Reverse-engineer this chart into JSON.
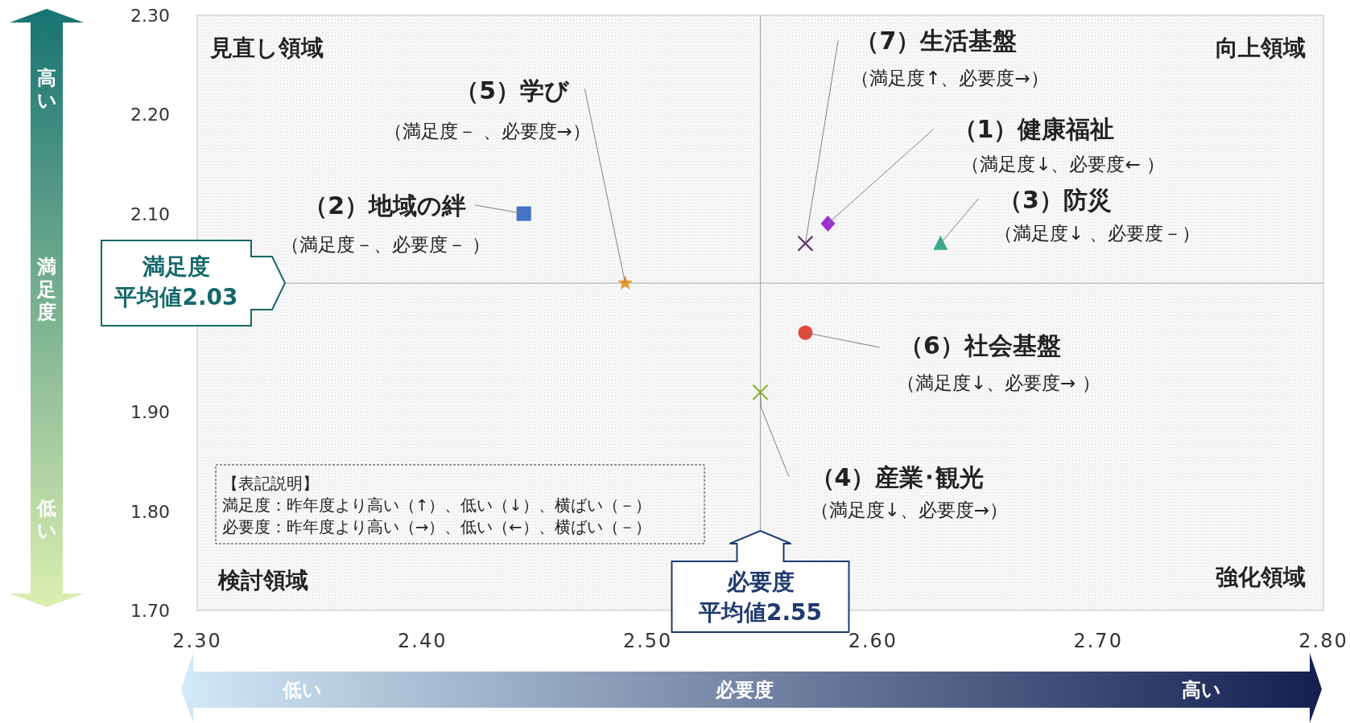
{
  "chart_data": {
    "type": "scatter",
    "xlabel": "必要度",
    "ylabel": "満足度",
    "xlim": [
      2.3,
      2.8
    ],
    "ylim": [
      1.7,
      2.3
    ],
    "xticks": [
      {
        "value": 2.3,
        "label": "2.30"
      },
      {
        "value": 2.4,
        "label": "2.40"
      },
      {
        "value": 2.5,
        "label": "2.50"
      },
      {
        "value": 2.6,
        "label": "2.60"
      },
      {
        "value": 2.7,
        "label": "2.70"
      },
      {
        "value": 2.8,
        "label": "2.80"
      }
    ],
    "yticks": [
      {
        "value": 1.7,
        "label": "1.70"
      },
      {
        "value": 1.8,
        "label": "1.80"
      },
      {
        "value": 1.9,
        "label": "1.90"
      },
      {
        "value": 2.1,
        "label": "2.10"
      },
      {
        "value": 2.2,
        "label": "2.20"
      },
      {
        "value": 2.3,
        "label": "2.30"
      }
    ],
    "series": [
      {
        "name": "（1）健康福祉",
        "color": "#9b30d0",
        "marker": "diamond",
        "x": [
          2.58
        ],
        "values": [
          2.09
        ]
      },
      {
        "name": "（2）地域の絆",
        "color": "#4472c4",
        "marker": "square",
        "x": [
          2.445
        ],
        "values": [
          2.1
        ]
      },
      {
        "name": "（3）防災",
        "color": "#3aaa8a",
        "marker": "triangle",
        "x": [
          2.63
        ],
        "values": [
          2.07
        ]
      },
      {
        "name": "（4）産業･観光",
        "color": "#8db02f",
        "marker": "cross",
        "x": [
          2.55
        ],
        "values": [
          1.92
        ]
      },
      {
        "name": "（5）学び",
        "color": "#e59b2b",
        "marker": "star",
        "x": [
          2.49
        ],
        "values": [
          2.03
        ]
      },
      {
        "name": "（6）社会基盤",
        "color": "#e0483a",
        "marker": "circle",
        "x": [
          2.57
        ],
        "values": [
          1.98
        ]
      },
      {
        "name": "（7）生活基盤",
        "color": "#5b2c6f",
        "marker": "cross",
        "x": [
          2.57
        ],
        "values": [
          2.07
        ]
      }
    ],
    "ref_lines": [
      {
        "axis": "x",
        "value": 2.55,
        "label": "必要度平均値2.55"
      },
      {
        "axis": "y",
        "value": 2.03,
        "label": "満足度平均値2.03"
      }
    ],
    "annotations": [
      "見直し領域",
      "向上領域",
      "検討領域",
      "強化領域",
      "【表記説明】",
      "満足度：昨年度より高い（↑）、低い（↓）、横ばい（－）",
      "必要度：昨年度より高い（→）、低い（←）、横ばい（－）",
      "高い",
      "低い",
      "低い",
      "高い",
      "（満足度↓、必要度← ）",
      "（満足度－、必要度－ ）",
      "（満足度↓ 、必要度－）",
      "（満足度↓、必要度→）",
      "（満足度－ 、必要度→）",
      "（満足度↓、必要度→ ）",
      "（満足度↑、必要度→）"
    ],
    "grid": false,
    "legend": false
  }
}
